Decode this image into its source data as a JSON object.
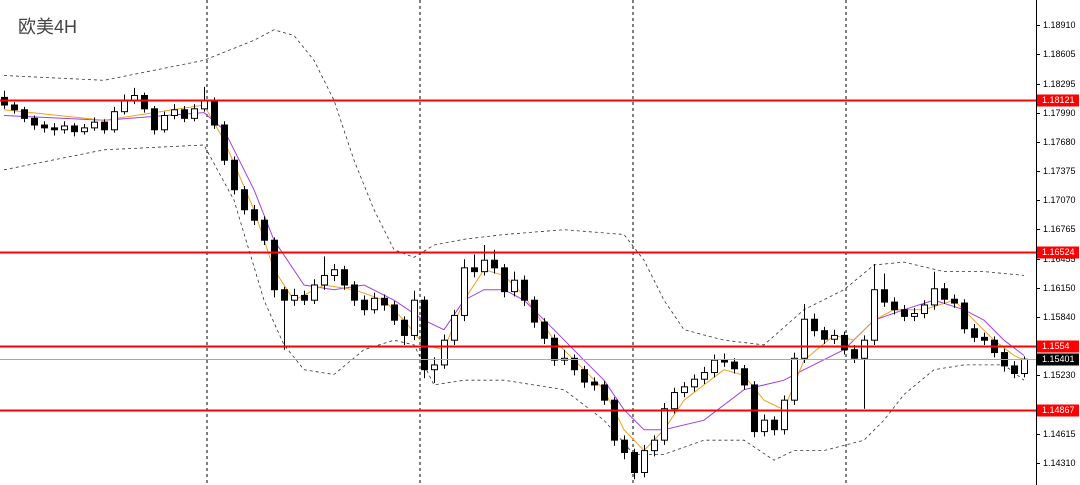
{
  "chart_data": {
    "type": "candlestick",
    "title": "欧美4H",
    "ylim": [
      1.14079,
      1.19173
    ],
    "yticks": [
      {
        "value": 1.1891,
        "label": "1.18910"
      },
      1.18605,
      1.18295,
      {
        "value": 1.1799,
        "label": "1.17990"
      },
      {
        "value": 1.1768,
        "label": "1.17680"
      },
      1.17375,
      {
        "value": 1.1707,
        "label": "1.17070"
      },
      1.16765,
      1.16455,
      {
        "value": 1.1615,
        "label": "1.16150"
      },
      {
        "value": 1.1584,
        "label": "1.15840"
      },
      {
        "value": 1.1523,
        "label": "1.15230"
      },
      1.14615,
      {
        "value": 1.1431,
        "label": "1.14310"
      }
    ],
    "up_color": "#ffffff",
    "down_color": "#000000",
    "levels": [
      1.18121,
      1.16524,
      1.1554,
      1.14867
    ],
    "level_color": "#ff0000",
    "current_price": 1.15401,
    "candles": [
      [
        1.1815,
        1.1822,
        1.1803,
        1.1807
      ],
      [
        1.1807,
        1.181,
        1.1798,
        1.1802
      ],
      [
        1.1802,
        1.1805,
        1.1789,
        1.1793
      ],
      [
        1.1793,
        1.1796,
        1.1781,
        1.1786
      ],
      [
        1.1786,
        1.179,
        1.1778,
        1.1783
      ],
      [
        1.1783,
        1.1788,
        1.1775,
        1.1781
      ],
      [
        1.1781,
        1.179,
        1.1777,
        1.1785
      ],
      [
        1.1785,
        1.1788,
        1.1774,
        1.1779
      ],
      [
        1.1779,
        1.1787,
        1.1776,
        1.1783
      ],
      [
        1.1783,
        1.1794,
        1.178,
        1.1789
      ],
      [
        1.1789,
        1.1792,
        1.1777,
        1.1781
      ],
      [
        1.1781,
        1.1805,
        1.1778,
        1.18
      ],
      [
        1.18,
        1.1818,
        1.1797,
        1.1812
      ],
      [
        1.1812,
        1.1825,
        1.1808,
        1.1817
      ],
      [
        1.1817,
        1.182,
        1.1799,
        1.1803
      ],
      [
        1.1803,
        1.1806,
        1.1776,
        1.1781
      ],
      [
        1.1781,
        1.18,
        1.1778,
        1.1796
      ],
      [
        1.1796,
        1.1808,
        1.1792,
        1.1802
      ],
      [
        1.1802,
        1.1806,
        1.1789,
        1.1793
      ],
      [
        1.1793,
        1.1808,
        1.179,
        1.1803
      ],
      [
        1.1803,
        1.1826,
        1.18,
        1.1812
      ],
      [
        1.1812,
        1.1815,
        1.1782,
        1.1786
      ],
      [
        1.1786,
        1.179,
        1.1744,
        1.1749
      ],
      [
        1.1749,
        1.1753,
        1.1713,
        1.1718
      ],
      [
        1.1718,
        1.1722,
        1.1692,
        1.1697
      ],
      [
        1.1697,
        1.1702,
        1.1681,
        1.1686
      ],
      [
        1.1686,
        1.169,
        1.166,
        1.1665
      ],
      [
        1.1665,
        1.1668,
        1.1605,
        1.1613
      ],
      [
        1.1613,
        1.1616,
        1.155,
        1.1602
      ],
      [
        1.1602,
        1.1614,
        1.1596,
        1.1607
      ],
      [
        1.1607,
        1.1612,
        1.1597,
        1.1602
      ],
      [
        1.1602,
        1.1624,
        1.1598,
        1.1618
      ],
      [
        1.1618,
        1.1648,
        1.1613,
        1.1628
      ],
      [
        1.1628,
        1.164,
        1.1622,
        1.1634
      ],
      [
        1.1634,
        1.1638,
        1.1613,
        1.1618
      ],
      [
        1.1618,
        1.1622,
        1.1596,
        1.1602
      ],
      [
        1.1602,
        1.1607,
        1.1586,
        1.1592
      ],
      [
        1.1592,
        1.161,
        1.1588,
        1.1604
      ],
      [
        1.1604,
        1.1608,
        1.1591,
        1.1597
      ],
      [
        1.1597,
        1.1601,
        1.1576,
        1.1581
      ],
      [
        1.1581,
        1.1585,
        1.1555,
        1.1565
      ],
      [
        1.1565,
        1.1612,
        1.156,
        1.1602
      ],
      [
        1.1602,
        1.1606,
        1.152,
        1.1529
      ],
      [
        1.1529,
        1.1542,
        1.1515,
        1.1534
      ],
      [
        1.1534,
        1.1566,
        1.153,
        1.156
      ],
      [
        1.156,
        1.1592,
        1.1555,
        1.1586
      ],
      [
        1.1586,
        1.1645,
        1.158,
        1.1636
      ],
      [
        1.1636,
        1.165,
        1.1626,
        1.1632
      ],
      [
        1.1632,
        1.166,
        1.1628,
        1.1644
      ],
      [
        1.1644,
        1.1655,
        1.163,
        1.1636
      ],
      [
        1.1636,
        1.164,
        1.1605,
        1.1611
      ],
      [
        1.1611,
        1.1632,
        1.1606,
        1.1623
      ],
      [
        1.1623,
        1.1628,
        1.1596,
        1.1602
      ],
      [
        1.1602,
        1.1606,
        1.1573,
        1.1579
      ],
      [
        1.1579,
        1.1583,
        1.1556,
        1.1562
      ],
      [
        1.1562,
        1.1566,
        1.1533,
        1.1539
      ],
      [
        1.1539,
        1.155,
        1.1534,
        1.1541
      ],
      [
        1.1541,
        1.1545,
        1.1523,
        1.1529
      ],
      [
        1.1529,
        1.1533,
        1.151,
        1.1516
      ],
      [
        1.1516,
        1.1521,
        1.1507,
        1.1513
      ],
      [
        1.1513,
        1.1517,
        1.1492,
        1.1497
      ],
      [
        1.1497,
        1.15,
        1.1449,
        1.1455
      ],
      [
        1.1455,
        1.146,
        1.1435,
        1.1442
      ],
      [
        1.1442,
        1.1446,
        1.1414,
        1.1421
      ],
      [
        1.1421,
        1.145,
        1.1416,
        1.1444
      ],
      [
        1.1444,
        1.146,
        1.1438,
        1.1455
      ],
      [
        1.1455,
        1.1494,
        1.145,
        1.1488
      ],
      [
        1.1488,
        1.151,
        1.1483,
        1.1505
      ],
      [
        1.1505,
        1.1516,
        1.15,
        1.1511
      ],
      [
        1.1511,
        1.1524,
        1.1506,
        1.1519
      ],
      [
        1.1519,
        1.1532,
        1.1514,
        1.1526
      ],
      [
        1.1526,
        1.1545,
        1.1521,
        1.1539
      ],
      [
        1.1539,
        1.1546,
        1.1532,
        1.1537
      ],
      [
        1.1537,
        1.1541,
        1.1525,
        1.153
      ],
      [
        1.153,
        1.1534,
        1.1508,
        1.1513
      ],
      [
        1.1513,
        1.1517,
        1.1458,
        1.1464
      ],
      [
        1.1464,
        1.1482,
        1.1459,
        1.1476
      ],
      [
        1.1476,
        1.148,
        1.146,
        1.1466
      ],
      [
        1.1466,
        1.1502,
        1.1461,
        1.1497
      ],
      [
        1.1497,
        1.1547,
        1.1492,
        1.1541
      ],
      [
        1.1541,
        1.1598,
        1.1536,
        1.1582
      ],
      [
        1.1582,
        1.1588,
        1.1564,
        1.157
      ],
      [
        1.157,
        1.1574,
        1.1556,
        1.1561
      ],
      [
        1.1561,
        1.1571,
        1.1556,
        1.1565
      ],
      [
        1.1565,
        1.1569,
        1.1545,
        1.155
      ],
      [
        1.155,
        1.1555,
        1.1536,
        1.1541
      ],
      [
        1.1541,
        1.1565,
        1.1488,
        1.156
      ],
      [
        1.156,
        1.164,
        1.1555,
        1.1613
      ],
      [
        1.1613,
        1.163,
        1.1595,
        1.16
      ],
      [
        1.16,
        1.1605,
        1.1587,
        1.1592
      ],
      [
        1.1592,
        1.1597,
        1.158,
        1.1585
      ],
      [
        1.1585,
        1.1594,
        1.158,
        1.1588
      ],
      [
        1.1588,
        1.1602,
        1.1583,
        1.1597
      ],
      [
        1.1597,
        1.1632,
        1.1592,
        1.1614
      ],
      [
        1.1614,
        1.162,
        1.1598,
        1.1603
      ],
      [
        1.1603,
        1.1608,
        1.1594,
        1.1599
      ],
      [
        1.1599,
        1.1603,
        1.1567,
        1.1572
      ],
      [
        1.1572,
        1.1577,
        1.1558,
        1.1563
      ],
      [
        1.1563,
        1.1568,
        1.1555,
        1.156
      ],
      [
        1.156,
        1.1564,
        1.1542,
        1.1547
      ],
      [
        1.1547,
        1.1551,
        1.1527,
        1.1533
      ],
      [
        1.1533,
        1.1538,
        1.152,
        1.1525
      ],
      [
        1.1525,
        1.1543,
        1.1521,
        1.154
      ]
    ],
    "overlays": [
      {
        "color": "#333333",
        "dashed": true,
        "x": [
          0,
          10,
          20,
          25,
          27,
          29,
          31,
          33,
          35,
          37,
          39,
          41,
          43,
          46,
          50,
          56,
          62,
          64,
          66,
          68,
          72,
          76,
          80,
          84,
          87,
          90,
          94,
          98,
          102
        ],
        "values": [
          1.1838,
          1.1833,
          1.1854,
          1.1875,
          1.1886,
          1.188,
          1.1854,
          1.1812,
          1.1749,
          1.1697,
          1.1655,
          1.1647,
          1.166,
          1.1666,
          1.1671,
          1.1676,
          1.1671,
          1.1644,
          1.1602,
          1.1571,
          1.156,
          1.1555,
          1.1592,
          1.1613,
          1.1639,
          1.1642,
          1.1632,
          1.1632,
          1.1628
        ]
      },
      {
        "color": "#333333",
        "dashed": true,
        "x": [
          0,
          10,
          20,
          23,
          26,
          28,
          30,
          33,
          36,
          39,
          41,
          43,
          46,
          50,
          56,
          60,
          63,
          66,
          70,
          74,
          77,
          79,
          82,
          86,
          88,
          90,
          93,
          96,
          100,
          102
        ],
        "values": [
          1.1739,
          1.176,
          1.1765,
          1.1707,
          1.1602,
          1.1555,
          1.1529,
          1.1524,
          1.155,
          1.156,
          1.1555,
          1.1513,
          1.1518,
          1.1518,
          1.1508,
          1.1476,
          1.144,
          1.144,
          1.1455,
          1.1455,
          1.1434,
          1.1444,
          1.1444,
          1.1455,
          1.1476,
          1.1503,
          1.1529,
          1.1534,
          1.1534,
          1.1518
        ]
      },
      {
        "color": "#a040e0",
        "dashed": false,
        "x": [
          0,
          10,
          20,
          22,
          25,
          27,
          30,
          33,
          36,
          39,
          42,
          44,
          46,
          48,
          50,
          52,
          55,
          58,
          60,
          62,
          64,
          66,
          70,
          74,
          78,
          80,
          84,
          87,
          90,
          93,
          96,
          98,
          100,
          102
        ],
        "values": [
          1.1796,
          1.1791,
          1.1799,
          1.1781,
          1.1718,
          1.1665,
          1.1618,
          1.1613,
          1.1618,
          1.1602,
          1.1581,
          1.1571,
          1.1602,
          1.1613,
          1.1613,
          1.1602,
          1.1571,
          1.1539,
          1.1518,
          1.1487,
          1.1466,
          1.1466,
          1.1476,
          1.1508,
          1.1518,
          1.1529,
          1.155,
          1.1581,
          1.1592,
          1.1602,
          1.1592,
          1.1581,
          1.156,
          1.1544
        ]
      },
      {
        "color": "#f0a020",
        "dashed": false,
        "x": [
          0,
          10,
          20,
          22,
          25,
          27,
          29,
          32,
          35,
          38,
          40,
          42,
          44,
          46,
          48,
          50,
          52,
          55,
          58,
          60,
          62,
          64,
          66,
          68,
          70,
          72,
          74,
          76,
          78,
          80,
          83,
          85,
          87,
          89,
          92,
          95,
          97,
          99,
          101,
          102
        ],
        "values": [
          1.1802,
          1.1791,
          1.1807,
          1.177,
          1.1697,
          1.1634,
          1.1602,
          1.1618,
          1.1613,
          1.1602,
          1.1581,
          1.1555,
          1.155,
          1.1602,
          1.1634,
          1.1628,
          1.1607,
          1.156,
          1.1529,
          1.1508,
          1.1466,
          1.1444,
          1.1466,
          1.1497,
          1.1513,
          1.1529,
          1.1523,
          1.1497,
          1.1487,
          1.1539,
          1.1565,
          1.156,
          1.1581,
          1.1592,
          1.1592,
          1.1602,
          1.1581,
          1.156,
          1.1544,
          1.1539
        ]
      }
    ]
  }
}
